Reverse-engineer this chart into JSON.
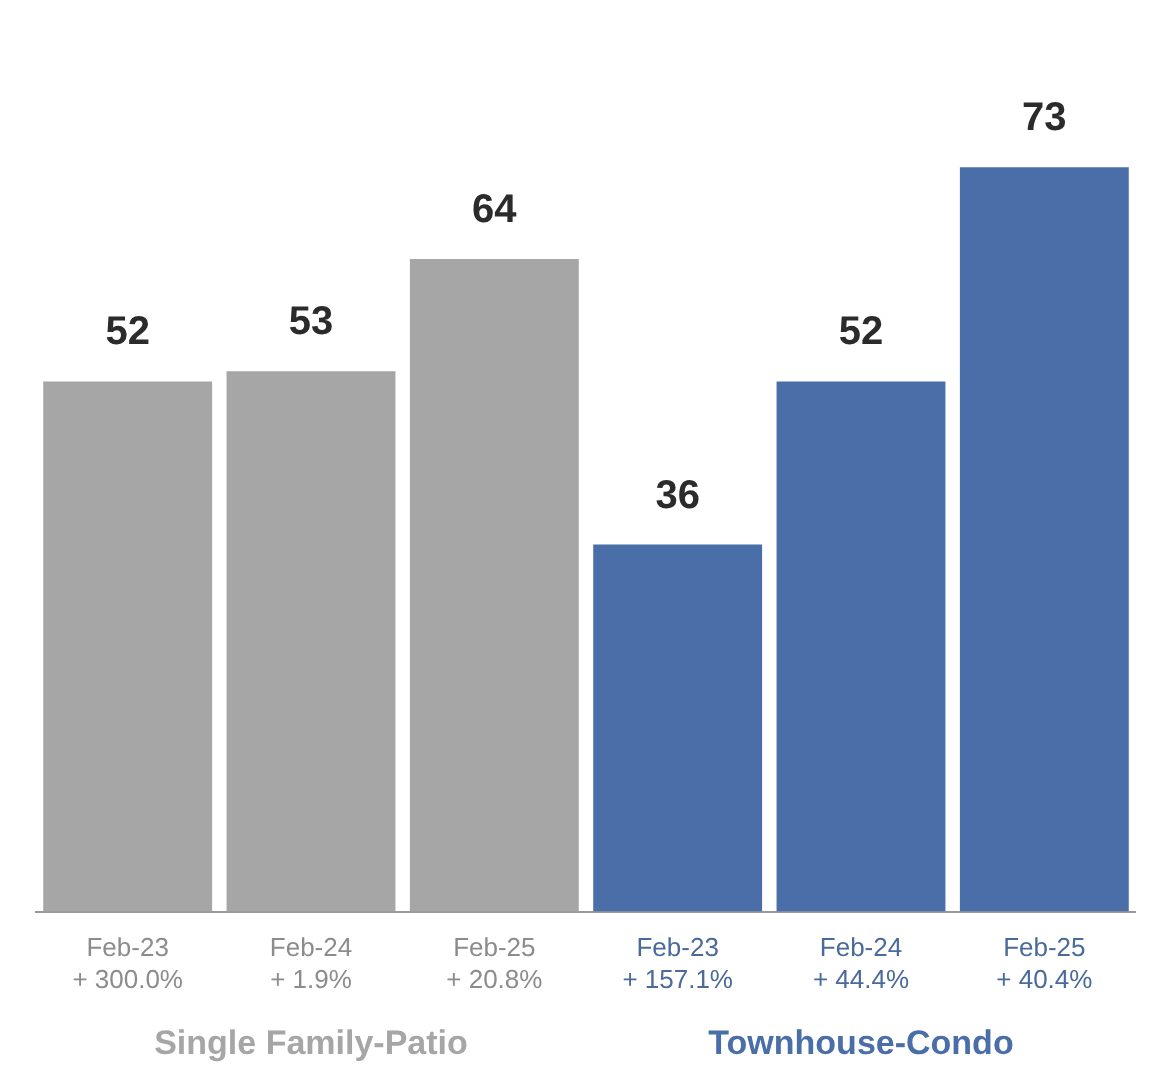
{
  "chart_data": {
    "type": "bar",
    "categories": [
      "Feb-23\n+ 300.0%",
      "Feb-24\n+ 1.9%",
      "Feb-25\n+ 20.8%",
      "Feb-23\n+ 157.1%",
      "Feb-24\n+ 44.4%",
      "Feb-25\n+ 40.4%"
    ],
    "series": [
      {
        "name": "Single Family-Patio",
        "color": "#a6a6a6",
        "values": [
          52,
          53,
          64,
          null,
          null,
          null
        ]
      },
      {
        "name": "Townhouse-Condo",
        "color": "#4a6ea8",
        "values": [
          null,
          null,
          null,
          36,
          52,
          73
        ]
      }
    ],
    "data_labels": true,
    "grid": false,
    "legend": false
  }
}
